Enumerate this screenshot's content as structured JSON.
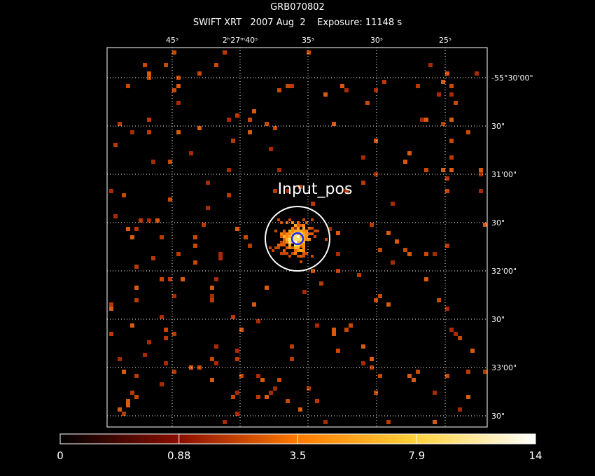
{
  "header": {
    "title": "GRB070802",
    "subtitle": "SWIFT XRT   2007 Aug  2    Exposure: 11148 s"
  },
  "ra_labels": [
    "45ˢ",
    "2ʰ27ᵐ40ˢ",
    "35ˢ",
    "30ˢ",
    "25ˢ"
  ],
  "dec_labels": [
    "-55°30'00\"",
    "30\"",
    "31'00\"",
    "30\"",
    "32'00\"",
    "30\"",
    "33'00\"",
    "30\""
  ],
  "annotation": "Input_pos",
  "colorbar": {
    "labels": [
      "0",
      "0.88",
      "3.5",
      "7.9",
      "14"
    ]
  }
}
